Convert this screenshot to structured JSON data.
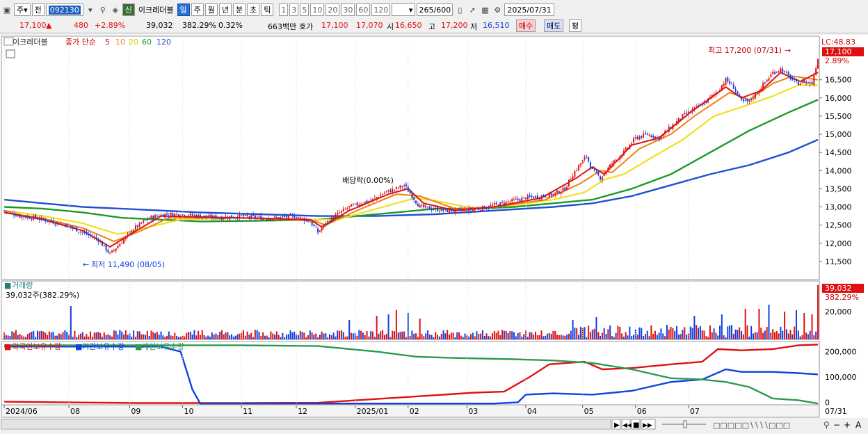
{
  "toolbar": {
    "period_select": "주",
    "prev_label": "전",
    "stock_code": "092130",
    "sin_label": "신",
    "stock_name": "이크레더블",
    "period_buttons": [
      "일",
      "주",
      "월",
      "년",
      "분",
      "초",
      "틱"
    ],
    "interval_buttons": [
      "1",
      "3",
      "5",
      "10",
      "20",
      "30",
      "60",
      "120"
    ],
    "range_value": "265",
    "range_max": "/600",
    "date_value": "2025/07/31"
  },
  "quote": {
    "price": "17,100",
    "change": "480",
    "change_pct": "+2.89%",
    "volume": "39,032",
    "volume_ratio": "382.29%",
    "turnover": "0.32%",
    "amount": "663백만",
    "hoga_label": "호가",
    "ask": "17,100",
    "bid": "17,070",
    "open_label": "시",
    "open": "16,650",
    "high_label": "고",
    "high": "17,200",
    "low_label": "저",
    "low": "16,510",
    "buy_label": "매수",
    "sell_label": "매도",
    "pyeong_label": "평"
  },
  "colors": {
    "up": "#e01010",
    "down": "#1040e0",
    "ma5": "#e01010",
    "ma10": "#f08010",
    "ma20": "#f0e020",
    "ma60": "#1a9a2a",
    "ma120": "#2050d0",
    "foreign": "#e01010",
    "institution": "#1040e0",
    "individual": "#2a9a50"
  },
  "chart_data": [
    {
      "type": "candlestick",
      "legend_stock": "이크레더블",
      "legend_ma_label": "종가 단순",
      "ma_periods": [
        "5",
        "10",
        "20",
        "60",
        "120"
      ],
      "lc_label": "LC:48.83",
      "last_price_tag": "17,100",
      "last_pct_tag": "2.89%",
      "ylim": [
        11000,
        17700
      ],
      "y_ticks": [
        "16,500",
        "16,000",
        "15,500",
        "15,000",
        "14,500",
        "14,000",
        "13,500",
        "13,000",
        "12,500",
        "12,000",
        "11,500"
      ],
      "y_tick_values": [
        16500,
        16000,
        15500,
        15000,
        14500,
        14000,
        13500,
        13000,
        12500,
        12000,
        11500
      ],
      "annotations": {
        "high": "최고 17,200 (07/31)",
        "low": "최저 11,490 (08/05)",
        "dividend": "배당락(0.00%)"
      },
      "x_labels": [
        "2024/06",
        "08",
        "09",
        "10",
        "11",
        "12",
        "2025/01",
        "02",
        "03",
        "04",
        "05",
        "06",
        "07"
      ],
      "close_path": [
        [
          0,
          12900
        ],
        [
          8,
          12750
        ],
        [
          16,
          12700
        ],
        [
          24,
          12600
        ],
        [
          32,
          12500
        ],
        [
          40,
          12300
        ],
        [
          48,
          12100
        ],
        [
          54,
          11700
        ],
        [
          60,
          12050
        ],
        [
          66,
          12400
        ],
        [
          74,
          12700
        ],
        [
          82,
          12800
        ],
        [
          90,
          12800
        ],
        [
          100,
          12750
        ],
        [
          110,
          12700
        ],
        [
          120,
          12750
        ],
        [
          130,
          12700
        ],
        [
          140,
          12700
        ],
        [
          148,
          12750
        ],
        [
          156,
          12600
        ],
        [
          160,
          12300
        ],
        [
          164,
          12550
        ],
        [
          170,
          12800
        ],
        [
          176,
          13000
        ],
        [
          182,
          13100
        ],
        [
          188,
          13200
        ],
        [
          194,
          13400
        ],
        [
          200,
          13500
        ],
        [
          204,
          13600
        ],
        [
          208,
          13300
        ],
        [
          212,
          13000
        ],
        [
          218,
          12950
        ],
        [
          226,
          12900
        ],
        [
          234,
          12900
        ],
        [
          242,
          12950
        ],
        [
          250,
          13050
        ],
        [
          258,
          13150
        ],
        [
          266,
          13250
        ],
        [
          274,
          13300
        ],
        [
          280,
          13350
        ],
        [
          286,
          13500
        ],
        [
          290,
          13900
        ],
        [
          294,
          14200
        ],
        [
          297,
          14400
        ],
        [
          300,
          14000
        ],
        [
          304,
          13800
        ],
        [
          310,
          14200
        ],
        [
          316,
          14500
        ],
        [
          322,
          14900
        ],
        [
          328,
          15000
        ],
        [
          334,
          14900
        ],
        [
          340,
          15200
        ],
        [
          346,
          15500
        ],
        [
          352,
          15700
        ],
        [
          358,
          15900
        ],
        [
          364,
          16200
        ],
        [
          368,
          16500
        ],
        [
          372,
          16300
        ],
        [
          376,
          15900
        ],
        [
          380,
          15900
        ],
        [
          386,
          16300
        ],
        [
          392,
          16700
        ],
        [
          396,
          16800
        ],
        [
          400,
          16600
        ],
        [
          404,
          16400
        ],
        [
          408,
          16450
        ],
        [
          412,
          16400
        ],
        [
          415,
          17100
        ]
      ],
      "ma5_path": [
        [
          0,
          12850
        ],
        [
          20,
          12650
        ],
        [
          40,
          12350
        ],
        [
          54,
          11900
        ],
        [
          66,
          12300
        ],
        [
          80,
          12750
        ],
        [
          120,
          12700
        ],
        [
          156,
          12650
        ],
        [
          162,
          12450
        ],
        [
          176,
          12900
        ],
        [
          196,
          13350
        ],
        [
          206,
          13500
        ],
        [
          214,
          13100
        ],
        [
          230,
          12900
        ],
        [
          250,
          13000
        ],
        [
          274,
          13250
        ],
        [
          292,
          13800
        ],
        [
          300,
          14100
        ],
        [
          306,
          13900
        ],
        [
          320,
          14700
        ],
        [
          334,
          14900
        ],
        [
          350,
          15600
        ],
        [
          368,
          16300
        ],
        [
          376,
          16000
        ],
        [
          386,
          16200
        ],
        [
          396,
          16700
        ],
        [
          406,
          16450
        ],
        [
          415,
          16700
        ]
      ],
      "ma10_path": [
        [
          0,
          12850
        ],
        [
          20,
          12680
        ],
        [
          40,
          12420
        ],
        [
          56,
          12050
        ],
        [
          70,
          12350
        ],
        [
          84,
          12700
        ],
        [
          120,
          12700
        ],
        [
          158,
          12620
        ],
        [
          164,
          12500
        ],
        [
          180,
          12900
        ],
        [
          200,
          13350
        ],
        [
          212,
          13300
        ],
        [
          230,
          12950
        ],
        [
          250,
          13000
        ],
        [
          276,
          13200
        ],
        [
          294,
          13650
        ],
        [
          304,
          14000
        ],
        [
          310,
          13950
        ],
        [
          324,
          14600
        ],
        [
          340,
          15000
        ],
        [
          352,
          15500
        ],
        [
          370,
          16150
        ],
        [
          380,
          15950
        ],
        [
          392,
          16400
        ],
        [
          402,
          16600
        ],
        [
          415,
          16500
        ]
      ],
      "ma20_path": [
        [
          0,
          12900
        ],
        [
          20,
          12750
        ],
        [
          40,
          12550
        ],
        [
          58,
          12250
        ],
        [
          74,
          12450
        ],
        [
          90,
          12650
        ],
        [
          120,
          12700
        ],
        [
          158,
          12650
        ],
        [
          170,
          12650
        ],
        [
          190,
          12950
        ],
        [
          210,
          13250
        ],
        [
          222,
          13150
        ],
        [
          240,
          12950
        ],
        [
          260,
          13050
        ],
        [
          280,
          13200
        ],
        [
          296,
          13400
        ],
        [
          306,
          13750
        ],
        [
          316,
          13900
        ],
        [
          330,
          14350
        ],
        [
          346,
          14850
        ],
        [
          362,
          15500
        ],
        [
          376,
          15750
        ],
        [
          392,
          16050
        ],
        [
          405,
          16350
        ],
        [
          415,
          16350
        ]
      ],
      "ma60_path": [
        [
          0,
          13000
        ],
        [
          20,
          12950
        ],
        [
          40,
          12850
        ],
        [
          60,
          12700
        ],
        [
          80,
          12650
        ],
        [
          100,
          12600
        ],
        [
          130,
          12620
        ],
        [
          160,
          12650
        ],
        [
          180,
          12750
        ],
        [
          200,
          12850
        ],
        [
          220,
          12950
        ],
        [
          240,
          12950
        ],
        [
          260,
          13000
        ],
        [
          280,
          13100
        ],
        [
          300,
          13200
        ],
        [
          320,
          13500
        ],
        [
          340,
          13900
        ],
        [
          360,
          14500
        ],
        [
          380,
          15100
        ],
        [
          400,
          15600
        ],
        [
          415,
          15950
        ]
      ],
      "ma120_path": [
        [
          0,
          13200
        ],
        [
          20,
          13100
        ],
        [
          40,
          13000
        ],
        [
          60,
          12950
        ],
        [
          80,
          12900
        ],
        [
          100,
          12850
        ],
        [
          130,
          12800
        ],
        [
          160,
          12750
        ],
        [
          190,
          12750
        ],
        [
          220,
          12800
        ],
        [
          250,
          12900
        ],
        [
          280,
          13000
        ],
        [
          300,
          13100
        ],
        [
          320,
          13300
        ],
        [
          340,
          13600
        ],
        [
          360,
          13900
        ],
        [
          380,
          14150
        ],
        [
          400,
          14500
        ],
        [
          415,
          14850
        ]
      ],
      "n_bars": 416
    },
    {
      "type": "bar",
      "legend": "거래량",
      "sub_label": "39,032주(382.29%)",
      "last_value_tag": "39,032",
      "last_pct_tag": "382.29%",
      "y_ticks": [
        "20,000"
      ],
      "y_tick_values": [
        20000
      ],
      "ylim": [
        0,
        40000
      ],
      "spikes": [
        [
          34,
          24000
        ],
        [
          176,
          14000
        ],
        [
          190,
          17000
        ],
        [
          196,
          18000
        ],
        [
          200,
          21000
        ],
        [
          206,
          19000
        ],
        [
          212,
          15000
        ],
        [
          290,
          14000
        ],
        [
          302,
          16000
        ],
        [
          352,
          17000
        ],
        [
          366,
          18000
        ],
        [
          378,
          22000
        ],
        [
          385,
          22000
        ],
        [
          390,
          25000
        ],
        [
          398,
          20000
        ],
        [
          404,
          21000
        ],
        [
          408,
          19000
        ],
        [
          412,
          18000
        ],
        [
          415,
          39032
        ]
      ]
    },
    {
      "type": "line",
      "legend": [
        "외국인보유수량",
        "기관보유수량",
        "개인보유수량"
      ],
      "y_ticks": [
        "200,000",
        "100,000",
        "0"
      ],
      "y_tick_values": [
        200000,
        100000,
        0
      ],
      "ylim": [
        -10000,
        240000
      ],
      "series": [
        {
          "name": "외국인보유수량",
          "points": [
            [
              0,
              2000
            ],
            [
              70,
              -3000
            ],
            [
              120,
              -3000
            ],
            [
              160,
              -2000
            ],
            [
              180,
              8000
            ],
            [
              200,
              18000
            ],
            [
              220,
              28000
            ],
            [
              240,
              38000
            ],
            [
              255,
              42000
            ],
            [
              268,
              100000
            ],
            [
              278,
              150000
            ],
            [
              296,
              160000
            ],
            [
              305,
              130000
            ],
            [
              320,
              135000
            ],
            [
              340,
              150000
            ],
            [
              356,
              160000
            ],
            [
              364,
              210000
            ],
            [
              376,
              205000
            ],
            [
              392,
              210000
            ],
            [
              405,
              225000
            ],
            [
              415,
              228000
            ]
          ]
        },
        {
          "name": "기관보유수량",
          "points": [
            [
              0,
              220000
            ],
            [
              80,
              220000
            ],
            [
              90,
              200000
            ],
            [
              96,
              50000
            ],
            [
              100,
              -5000
            ],
            [
              140,
              -5000
            ],
            [
              200,
              -5000
            ],
            [
              250,
              -5000
            ],
            [
              262,
              0
            ],
            [
              266,
              30000
            ],
            [
              280,
              35000
            ],
            [
              300,
              30000
            ],
            [
              320,
              45000
            ],
            [
              340,
              80000
            ],
            [
              356,
              90000
            ],
            [
              368,
              130000
            ],
            [
              376,
              120000
            ],
            [
              392,
              120000
            ],
            [
              405,
              115000
            ],
            [
              415,
              110000
            ]
          ]
        },
        {
          "name": "개인보유수량",
          "points": [
            [
              0,
              225000
            ],
            [
              120,
              225000
            ],
            [
              160,
              222000
            ],
            [
              190,
              200000
            ],
            [
              210,
              180000
            ],
            [
              230,
              175000
            ],
            [
              260,
              170000
            ],
            [
              280,
              165000
            ],
            [
              300,
              155000
            ],
            [
              320,
              130000
            ],
            [
              340,
              95000
            ],
            [
              356,
              90000
            ],
            [
              368,
              80000
            ],
            [
              380,
              60000
            ],
            [
              392,
              15000
            ],
            [
              405,
              8000
            ],
            [
              415,
              -5000
            ]
          ]
        }
      ]
    }
  ],
  "bottom": {
    "axis_right_label": "07/31",
    "zoom_minus": "−",
    "zoom_plus": "+",
    "font_label": "A"
  }
}
